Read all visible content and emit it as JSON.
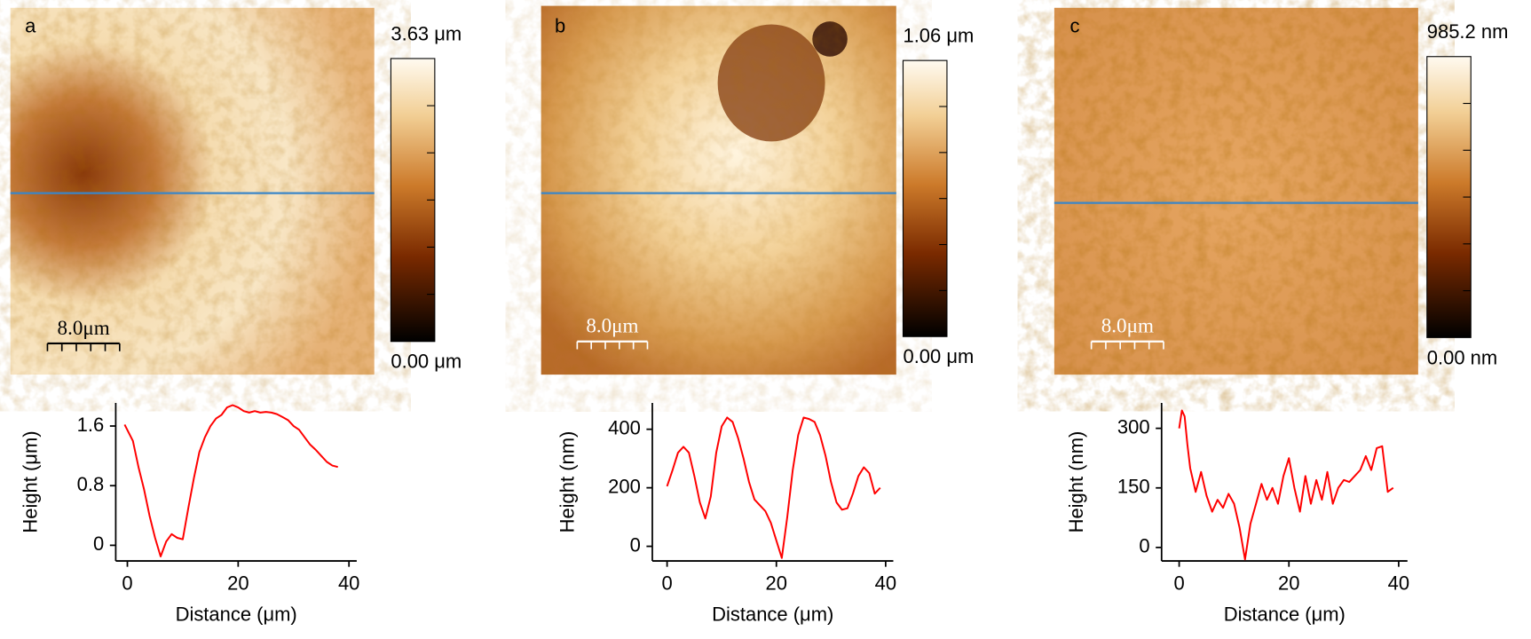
{
  "panels": [
    {
      "label": "a",
      "colorbar_max": "3.63 μm",
      "colorbar_min": "0.00 μm",
      "scale_bar": "8.0μm"
    },
    {
      "label": "b",
      "colorbar_max": "1.06 μm",
      "colorbar_min": "0.00 μm",
      "scale_bar": "8.0μm"
    },
    {
      "label": "c",
      "colorbar_max": "985.2 nm",
      "colorbar_min": "0.00 nm",
      "scale_bar": "8.0μm"
    }
  ],
  "chart_data": [
    {
      "type": "line",
      "x_label": "Distance (μm)",
      "y_label": "Height (μm)",
      "x": [
        -0.5,
        1,
        2,
        3,
        4,
        5,
        6,
        7,
        8,
        9,
        10,
        11,
        12,
        13,
        14,
        15,
        16,
        17,
        18,
        19,
        20,
        21,
        22,
        23,
        24,
        25,
        26,
        27,
        28,
        29,
        30,
        31,
        32,
        33,
        34,
        35,
        36,
        37,
        38
      ],
      "series": [
        {
          "color": "#ff0000",
          "values": [
            1.62,
            1.4,
            1.05,
            0.75,
            0.4,
            0.1,
            -0.15,
            0.05,
            0.15,
            0.1,
            0.08,
            0.5,
            0.9,
            1.25,
            1.45,
            1.6,
            1.7,
            1.75,
            1.85,
            1.88,
            1.85,
            1.8,
            1.78,
            1.8,
            1.78,
            1.79,
            1.78,
            1.76,
            1.72,
            1.68,
            1.6,
            1.55,
            1.45,
            1.35,
            1.28,
            1.2,
            1.12,
            1.07,
            1.05
          ]
        }
      ],
      "xlim": [
        -2.1,
        41.4
      ],
      "ylim": [
        -0.21,
        1.91
      ],
      "xticks": [
        0,
        20,
        40
      ],
      "yticks": [
        0,
        0.8,
        1.6
      ]
    },
    {
      "type": "line",
      "x_label": "Distance (μm)",
      "y_label": "Height (nm)",
      "x": [
        0,
        1,
        2,
        3,
        4,
        5,
        6,
        7,
        8,
        9,
        10,
        11,
        12,
        13,
        14,
        15,
        16,
        17,
        18,
        19,
        20,
        21,
        22,
        23,
        24,
        25,
        26,
        27,
        28,
        29,
        30,
        31,
        32,
        33,
        34,
        35,
        36,
        37,
        38,
        39
      ],
      "series": [
        {
          "color": "#ff0000",
          "values": [
            205,
            260,
            320,
            340,
            320,
            240,
            150,
            95,
            170,
            320,
            410,
            440,
            425,
            370,
            300,
            220,
            160,
            140,
            120,
            80,
            20,
            -40,
            100,
            260,
            380,
            440,
            435,
            425,
            380,
            310,
            220,
            150,
            125,
            130,
            180,
            240,
            270,
            250,
            180,
            200
          ]
        }
      ],
      "xlim": [
        -2.7,
        41.4
      ],
      "ylim": [
        -50,
        490
      ],
      "xticks": [
        0,
        20,
        40
      ],
      "yticks": [
        0,
        200,
        400
      ]
    },
    {
      "type": "line",
      "x_label": "Distance (μm)",
      "y_label": "Height (nm)",
      "x": [
        0,
        0.5,
        1,
        1.5,
        2,
        3,
        4,
        5,
        6,
        7,
        8,
        9,
        10,
        11,
        12,
        13,
        14,
        15,
        16,
        17,
        18,
        19,
        20,
        21,
        22,
        23,
        24,
        25,
        26,
        27,
        28,
        29,
        30,
        31,
        32,
        33,
        34,
        35,
        36,
        37,
        38,
        39
      ],
      "series": [
        {
          "color": "#ff0000",
          "values": [
            300,
            345,
            330,
            260,
            200,
            140,
            190,
            130,
            90,
            120,
            100,
            135,
            110,
            50,
            -30,
            60,
            110,
            160,
            120,
            150,
            110,
            180,
            225,
            150,
            90,
            180,
            110,
            170,
            120,
            190,
            110,
            150,
            170,
            165,
            180,
            195,
            230,
            195,
            250,
            255,
            140,
            150
          ]
        }
      ],
      "xlim": [
        -3.2,
        41.6
      ],
      "ylim": [
        -34,
        364
      ],
      "xticks": [
        0,
        20,
        40
      ],
      "yticks": [
        0,
        150,
        300
      ]
    }
  ]
}
